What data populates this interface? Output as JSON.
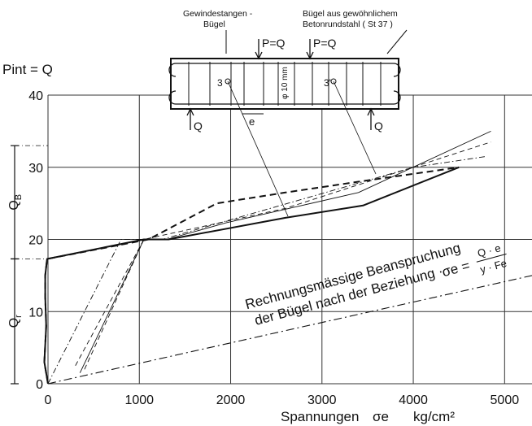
{
  "chart_data": {
    "type": "line",
    "title": "",
    "y_axis": {
      "label": "Pint = Q",
      "range": [
        0,
        40
      ],
      "ticks": [
        "0",
        "10",
        "20",
        "30",
        "40"
      ]
    },
    "x_axis": {
      "label": "Spannungen",
      "symbol": "σe",
      "unit": "kg/cm²",
      "range": [
        0,
        5300
      ],
      "ticks": [
        "0",
        "1000",
        "2000",
        "3000",
        "4000",
        "5000"
      ]
    },
    "load_ranges": [
      {
        "label": "QB",
        "from": 17.3,
        "to": 33
      },
      {
        "label": "Qr",
        "from": 0,
        "to": 17.3
      }
    ],
    "series": [
      {
        "name": "3",
        "style": "solid-thick",
        "points": [
          [
            0,
            0
          ],
          [
            -40,
            3
          ],
          [
            -20,
            8
          ],
          [
            -30,
            12
          ],
          [
            -30,
            15
          ],
          [
            -10,
            17.3
          ],
          [
            1050,
            20
          ],
          [
            1320,
            20
          ],
          [
            2600,
            23
          ],
          [
            3450,
            24.7
          ],
          [
            4500,
            30
          ]
        ]
      },
      {
        "name": "3'",
        "style": "dashed-thick",
        "points": [
          [
            0,
            0
          ],
          [
            -40,
            3
          ],
          [
            -20,
            8
          ],
          [
            -30,
            12
          ],
          [
            -30,
            15
          ],
          [
            -10,
            17.3
          ],
          [
            1100,
            20
          ],
          [
            1850,
            25
          ],
          [
            2600,
            26.5
          ],
          [
            3400,
            28
          ],
          [
            4500,
            30
          ]
        ]
      },
      {
        "name": "",
        "style": "solid-thin",
        "points": [
          [
            350,
            1.5
          ],
          [
            1050,
            20
          ],
          [
            1300,
            20
          ],
          [
            1950,
            22.3
          ],
          [
            3400,
            26.5
          ],
          [
            4850,
            35
          ]
        ]
      },
      {
        "name": "",
        "style": "dashed-thin",
        "points": [
          [
            300,
            2.5
          ],
          [
            1050,
            20
          ],
          [
            2600,
            24.3
          ],
          [
            4850,
            33.5
          ]
        ]
      },
      {
        "name": "",
        "style": "dashdot-thin",
        "points": [
          [
            0,
            0
          ],
          [
            800,
            20
          ],
          [
            1250,
            20
          ],
          [
            4000,
            30
          ],
          [
            4800,
            31.5
          ]
        ]
      },
      {
        "name": "",
        "style": "dashed-thin",
        "points": [
          [
            400,
            2
          ],
          [
            1050,
            20
          ]
        ]
      },
      {
        "name": "",
        "style": "dashdot",
        "points": [
          [
            0,
            0
          ],
          [
            5300,
            15
          ]
        ]
      }
    ],
    "annotation": {
      "line1": "Rechnungsmässige Beanspruchung",
      "line2": "der Bügel nach der Beziehung ·",
      "formula_lhs": "σe =",
      "formula_num": "Q · e",
      "formula_den": "y · Fe"
    },
    "inset": {
      "label_left_1": "Gewindestangen -",
      "label_left_2": "Bügel",
      "label_right_1": "Bügel aus gewöhnlichem",
      "label_right_2": "Betonrundstahl ( St 37 )",
      "load_label": "P=Q",
      "support_label": "Q",
      "spacing_label": "e",
      "dia_label": "φ 10 mm",
      "marker_left": "3",
      "marker_right": "3'"
    }
  }
}
